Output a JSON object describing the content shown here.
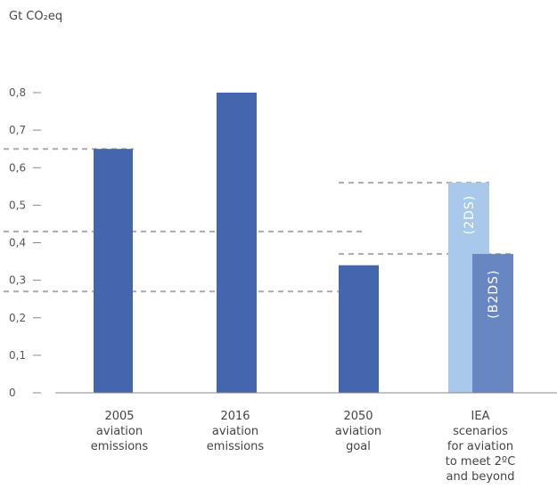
{
  "chart_data": {
    "type": "bar",
    "unit_label": "Gt CO₂eq",
    "ylim": [
      0,
      0.8
    ],
    "y_ticks": [
      {
        "value": 0,
        "label": "0"
      },
      {
        "value": 0.1,
        "label": "0,1"
      },
      {
        "value": 0.2,
        "label": "0,2"
      },
      {
        "value": 0.3,
        "label": "0,3"
      },
      {
        "value": 0.4,
        "label": "0,4"
      },
      {
        "value": 0.5,
        "label": "0,5"
      },
      {
        "value": 0.6,
        "label": "0,6"
      },
      {
        "value": 0.7,
        "label": "0,7"
      },
      {
        "value": 0.8,
        "label": "0,8"
      }
    ],
    "categories": [
      {
        "label_lines": [
          "2005",
          "aviation",
          "emissions"
        ]
      },
      {
        "label_lines": [
          "2016",
          "aviation",
          "emissions"
        ]
      },
      {
        "label_lines": [
          "2050",
          "aviation",
          "goal"
        ]
      },
      {
        "label_lines": [
          "IEA",
          "scenarios",
          "for aviation",
          "to meet 2ºC",
          "and beyond"
        ]
      }
    ],
    "bars": [
      {
        "category": 0,
        "value": 0.65,
        "color": "#4466ae"
      },
      {
        "category": 1,
        "value": 0.8,
        "color": "#4466ae"
      },
      {
        "category": 2,
        "value": 0.34,
        "color": "#4466ae"
      },
      {
        "category": 3,
        "value": 0.56,
        "color": "#a8c9e9",
        "label": "(2DS)"
      },
      {
        "category": 3,
        "value": 0.37,
        "color": "#6886c2",
        "label": "(B2DS)"
      }
    ],
    "reference_lines": [
      {
        "value": 0.65
      },
      {
        "value": 0.43
      },
      {
        "value": 0.27
      },
      {
        "value": 0.56
      },
      {
        "value": 0.37
      }
    ],
    "colors": {
      "axis": "#888888",
      "dash": "#aaaaaa"
    }
  }
}
